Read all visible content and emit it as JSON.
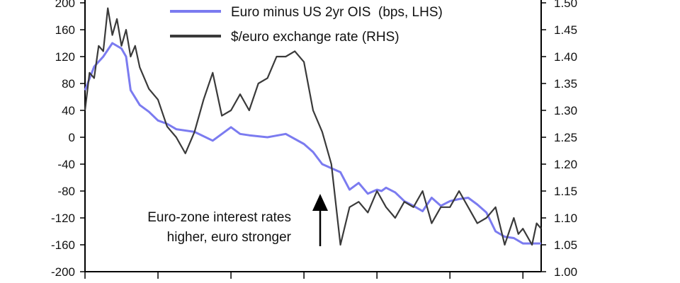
{
  "chart_data": {
    "type": "line",
    "title": "",
    "xlabel": "",
    "ylabel_left": "",
    "ylabel_right": "",
    "x_range": [
      0,
      100
    ],
    "ylim_left": [
      -200,
      200
    ],
    "ylim_right": [
      1.0,
      1.5
    ],
    "left_ticks": [
      200,
      160,
      120,
      80,
      40,
      0,
      -40,
      -80,
      -120,
      -160,
      -200
    ],
    "left_tick_labels": [
      "200",
      "160",
      "120",
      "80",
      "40",
      "0",
      "-40",
      "-80",
      "-120",
      "-160",
      "-200"
    ],
    "right_ticks": [
      1.5,
      1.45,
      1.4,
      1.35,
      1.3,
      1.25,
      1.2,
      1.15,
      1.1,
      1.05,
      1.0
    ],
    "right_tick_labels": [
      "1.50",
      "1.45",
      "1.40",
      "1.35",
      "1.30",
      "1.25",
      "1.20",
      "1.15",
      "1.10",
      "1.05",
      "1.00"
    ],
    "x_ticks": [
      0,
      16,
      32,
      48,
      64,
      80,
      96
    ],
    "grid": false,
    "legend_position": "top-center",
    "series": [
      {
        "name": "Euro minus US 2yr OIS  (bps, LHS)",
        "axis": "left",
        "color": "#7b7bf0",
        "x": [
          0,
          2,
          4,
          6,
          8,
          9,
          10,
          12,
          14,
          16,
          18,
          20,
          24,
          28,
          32,
          34,
          36,
          40,
          44,
          48,
          50,
          52,
          56,
          58,
          60,
          62,
          64,
          65,
          66,
          68,
          70,
          72,
          74,
          76,
          78,
          80,
          82,
          84,
          86,
          88,
          90,
          92,
          94,
          96,
          98,
          100
        ],
        "values": [
          70,
          105,
          120,
          140,
          132,
          120,
          70,
          48,
          38,
          25,
          20,
          12,
          8,
          -5,
          15,
          5,
          3,
          0,
          5,
          -10,
          -22,
          -40,
          -52,
          -78,
          -68,
          -84,
          -78,
          -80,
          -75,
          -82,
          -95,
          -102,
          -110,
          -90,
          -102,
          -95,
          -92,
          -90,
          -100,
          -112,
          -140,
          -148,
          -150,
          -158,
          -158,
          -158
        ]
      },
      {
        "name": "$/euro exchange rate (RHS)",
        "axis": "right",
        "color": "#3a3a3a",
        "x": [
          0,
          1,
          2,
          3,
          4,
          5,
          6,
          7,
          8,
          9,
          10,
          11,
          12,
          14,
          16,
          18,
          20,
          22,
          24,
          26,
          28,
          30,
          32,
          34,
          36,
          38,
          40,
          42,
          44,
          46,
          48,
          50,
          52,
          54,
          56,
          58,
          60,
          62,
          64,
          66,
          68,
          70,
          72,
          74,
          76,
          78,
          80,
          82,
          84,
          86,
          88,
          90,
          92,
          94,
          95,
          96,
          98,
          99,
          100
        ],
        "values": [
          1.3,
          1.37,
          1.36,
          1.42,
          1.41,
          1.49,
          1.44,
          1.47,
          1.42,
          1.45,
          1.4,
          1.42,
          1.38,
          1.34,
          1.32,
          1.27,
          1.25,
          1.22,
          1.26,
          1.32,
          1.37,
          1.29,
          1.3,
          1.33,
          1.3,
          1.35,
          1.36,
          1.4,
          1.4,
          1.41,
          1.39,
          1.3,
          1.26,
          1.2,
          1.05,
          1.12,
          1.13,
          1.11,
          1.15,
          1.12,
          1.1,
          1.13,
          1.12,
          1.15,
          1.09,
          1.12,
          1.12,
          1.15,
          1.12,
          1.09,
          1.1,
          1.12,
          1.05,
          1.1,
          1.07,
          1.08,
          1.05,
          1.09,
          1.08
        ]
      }
    ],
    "annotation": {
      "lines": [
        "Euro-zone interest rates",
        "higher, euro stronger"
      ],
      "arrow_direction": "up"
    }
  }
}
